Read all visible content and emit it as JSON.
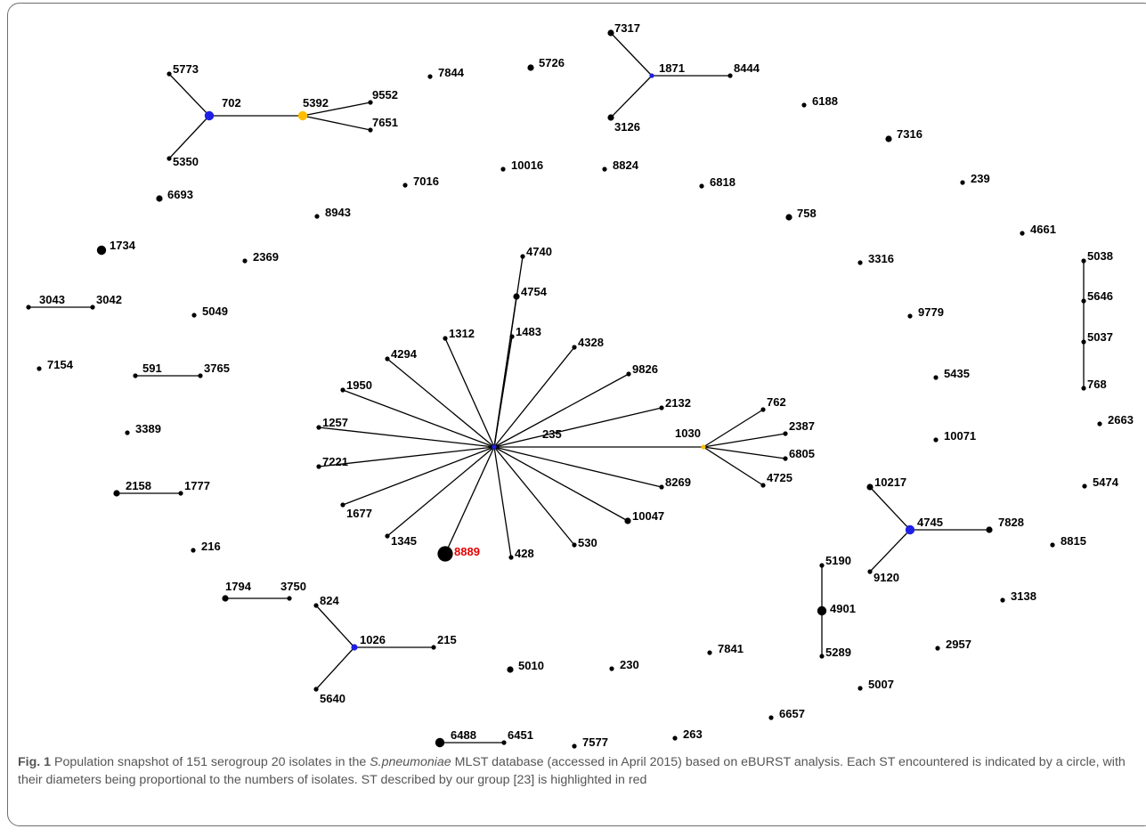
{
  "figure": {
    "caption": {
      "label": "Fig. 1",
      "text_before_species": "Population snapshot of 151 serogroup 20 isolates in the",
      "species": "S.pneumoniae",
      "text_after_species": "MLST database (accessed in April 2015) based on eBURST analysis. Each ST encountered is indicated by a circle, with their diameters being proportional to the numbers of isolates. ST described by our group [23] is highlighted in red"
    }
  },
  "colors": {
    "founder": "#1f1fe6",
    "subfounder": "#ffbf00",
    "default_node": "#000000",
    "highlight_label": "#e60000",
    "edge": "#000000"
  },
  "network": {
    "nodes": [
      {
        "id": "235",
        "label": "235",
        "type": "founder",
        "size": "small"
      },
      {
        "id": "4740",
        "label": "4740",
        "type": "default",
        "size": "small"
      },
      {
        "id": "4754",
        "label": "4754",
        "type": "default",
        "size": "medium"
      },
      {
        "id": "1483",
        "label": "1483",
        "type": "default",
        "size": "small"
      },
      {
        "id": "1312",
        "label": "1312",
        "type": "default",
        "size": "small"
      },
      {
        "id": "4294",
        "label": "4294",
        "type": "default",
        "size": "small"
      },
      {
        "id": "4328",
        "label": "4328",
        "type": "default",
        "size": "small"
      },
      {
        "id": "9826",
        "label": "9826",
        "type": "default",
        "size": "small"
      },
      {
        "id": "1950",
        "label": "1950",
        "type": "default",
        "size": "small"
      },
      {
        "id": "2132",
        "label": "2132",
        "type": "default",
        "size": "small"
      },
      {
        "id": "1257",
        "label": "1257",
        "type": "default",
        "size": "small"
      },
      {
        "id": "7221",
        "label": "7221",
        "type": "default",
        "size": "small"
      },
      {
        "id": "8269",
        "label": "8269",
        "type": "default",
        "size": "small"
      },
      {
        "id": "1677",
        "label": "1677",
        "type": "default",
        "size": "small"
      },
      {
        "id": "10047",
        "label": "10047",
        "type": "default",
        "size": "medium"
      },
      {
        "id": "1345",
        "label": "1345",
        "type": "default",
        "size": "small"
      },
      {
        "id": "8889",
        "label": "8889",
        "type": "highlight",
        "size": "xlarge"
      },
      {
        "id": "428",
        "label": "428",
        "type": "default",
        "size": "small"
      },
      {
        "id": "530",
        "label": "530",
        "type": "default",
        "size": "small"
      },
      {
        "id": "1030",
        "label": "1030",
        "type": "subfounder",
        "size": "small"
      },
      {
        "id": "762",
        "label": "762",
        "type": "default",
        "size": "small"
      },
      {
        "id": "2387",
        "label": "2387",
        "type": "default",
        "size": "small"
      },
      {
        "id": "6805",
        "label": "6805",
        "type": "default",
        "size": "small"
      },
      {
        "id": "4725",
        "label": "4725",
        "type": "default",
        "size": "small"
      },
      {
        "id": "702",
        "label": "702",
        "type": "founder",
        "size": "large"
      },
      {
        "id": "5773",
        "label": "5773",
        "type": "default",
        "size": "small"
      },
      {
        "id": "5350",
        "label": "5350",
        "type": "default",
        "size": "small"
      },
      {
        "id": "5392",
        "label": "5392",
        "type": "subfounder",
        "size": "large"
      },
      {
        "id": "9552",
        "label": "9552",
        "type": "default",
        "size": "small"
      },
      {
        "id": "7651",
        "label": "7651",
        "type": "default",
        "size": "small"
      },
      {
        "id": "1871",
        "label": "1871",
        "type": "founder",
        "size": "small"
      },
      {
        "id": "7317",
        "label": "7317",
        "type": "default",
        "size": "medium"
      },
      {
        "id": "3126",
        "label": "3126",
        "type": "default",
        "size": "medium"
      },
      {
        "id": "8444",
        "label": "8444",
        "type": "default",
        "size": "small"
      },
      {
        "id": "4745",
        "label": "4745",
        "type": "founder",
        "size": "large"
      },
      {
        "id": "10217",
        "label": "10217",
        "type": "default",
        "size": "medium"
      },
      {
        "id": "9120",
        "label": "9120",
        "type": "default",
        "size": "small"
      },
      {
        "id": "7828",
        "label": "7828",
        "type": "default",
        "size": "medium"
      },
      {
        "id": "1026",
        "label": "1026",
        "type": "founder",
        "size": "medium"
      },
      {
        "id": "824",
        "label": "824",
        "type": "default",
        "size": "small"
      },
      {
        "id": "5640",
        "label": "5640",
        "type": "default",
        "size": "small"
      },
      {
        "id": "215",
        "label": "215",
        "type": "default",
        "size": "small"
      },
      {
        "id": "5190",
        "label": "5190",
        "type": "default",
        "size": "small"
      },
      {
        "id": "4901",
        "label": "4901",
        "type": "default",
        "size": "large"
      },
      {
        "id": "5289",
        "label": "5289",
        "type": "default",
        "size": "small"
      },
      {
        "id": "5038",
        "label": "5038",
        "type": "default",
        "size": "small"
      },
      {
        "id": "5646",
        "label": "5646",
        "type": "default",
        "size": "small"
      },
      {
        "id": "5037",
        "label": "5037",
        "type": "default",
        "size": "small"
      },
      {
        "id": "768",
        "label": "768",
        "type": "default",
        "size": "small"
      },
      {
        "id": "3043",
        "label": "3043",
        "type": "default",
        "size": "small"
      },
      {
        "id": "3042",
        "label": "3042",
        "type": "default",
        "size": "small"
      },
      {
        "id": "591",
        "label": "591",
        "type": "default",
        "size": "small"
      },
      {
        "id": "3765",
        "label": "3765",
        "type": "default",
        "size": "small"
      },
      {
        "id": "2158",
        "label": "2158",
        "type": "default",
        "size": "medium"
      },
      {
        "id": "1777",
        "label": "1777",
        "type": "default",
        "size": "small"
      },
      {
        "id": "1794",
        "label": "1794",
        "type": "default",
        "size": "medium"
      },
      {
        "id": "3750",
        "label": "3750",
        "type": "default",
        "size": "small"
      },
      {
        "id": "6488",
        "label": "6488",
        "type": "default",
        "size": "large"
      },
      {
        "id": "6451",
        "label": "6451",
        "type": "default",
        "size": "small"
      },
      {
        "id": "7844",
        "label": "7844",
        "type": "default",
        "size": "small"
      },
      {
        "id": "5726",
        "label": "5726",
        "type": "default",
        "size": "medium"
      },
      {
        "id": "6188",
        "label": "6188",
        "type": "default",
        "size": "small"
      },
      {
        "id": "7316",
        "label": "7316",
        "type": "default",
        "size": "medium"
      },
      {
        "id": "6693",
        "label": "6693",
        "type": "default",
        "size": "medium"
      },
      {
        "id": "7016",
        "label": "7016",
        "type": "default",
        "size": "small"
      },
      {
        "id": "10016",
        "label": "10016",
        "type": "default",
        "size": "small"
      },
      {
        "id": "8824",
        "label": "8824",
        "type": "default",
        "size": "small"
      },
      {
        "id": "6818",
        "label": "6818",
        "type": "default",
        "size": "small"
      },
      {
        "id": "239",
        "label": "239",
        "type": "default",
        "size": "small"
      },
      {
        "id": "8943",
        "label": "8943",
        "type": "default",
        "size": "small"
      },
      {
        "id": "758",
        "label": "758",
        "type": "default",
        "size": "medium"
      },
      {
        "id": "1734",
        "label": "1734",
        "type": "default",
        "size": "large"
      },
      {
        "id": "4661",
        "label": "4661",
        "type": "default",
        "size": "small"
      },
      {
        "id": "2369",
        "label": "2369",
        "type": "default",
        "size": "small"
      },
      {
        "id": "3316",
        "label": "3316",
        "type": "default",
        "size": "small"
      },
      {
        "id": "5049",
        "label": "5049",
        "type": "default",
        "size": "small"
      },
      {
        "id": "9779",
        "label": "9779",
        "type": "default",
        "size": "small"
      },
      {
        "id": "7154",
        "label": "7154",
        "type": "default",
        "size": "small"
      },
      {
        "id": "5435",
        "label": "5435",
        "type": "default",
        "size": "small"
      },
      {
        "id": "3389",
        "label": "3389",
        "type": "default",
        "size": "small"
      },
      {
        "id": "2663",
        "label": "2663",
        "type": "default",
        "size": "small"
      },
      {
        "id": "10071",
        "label": "10071",
        "type": "default",
        "size": "small"
      },
      {
        "id": "5474",
        "label": "5474",
        "type": "default",
        "size": "small"
      },
      {
        "id": "216",
        "label": "216",
        "type": "default",
        "size": "small"
      },
      {
        "id": "8815",
        "label": "8815",
        "type": "default",
        "size": "small"
      },
      {
        "id": "3138",
        "label": "3138",
        "type": "default",
        "size": "small"
      },
      {
        "id": "2957",
        "label": "2957",
        "type": "default",
        "size": "small"
      },
      {
        "id": "5010",
        "label": "5010",
        "type": "default",
        "size": "medium"
      },
      {
        "id": "230",
        "label": "230",
        "type": "default",
        "size": "small"
      },
      {
        "id": "7841",
        "label": "7841",
        "type": "default",
        "size": "small"
      },
      {
        "id": "5007",
        "label": "5007",
        "type": "default",
        "size": "small"
      },
      {
        "id": "6657",
        "label": "6657",
        "type": "default",
        "size": "small"
      },
      {
        "id": "7577",
        "label": "7577",
        "type": "default",
        "size": "small"
      },
      {
        "id": "263",
        "label": "263",
        "type": "default",
        "size": "small"
      }
    ],
    "edges": [
      [
        "235",
        "4740"
      ],
      [
        "235",
        "4754"
      ],
      [
        "235",
        "1483"
      ],
      [
        "235",
        "1312"
      ],
      [
        "235",
        "4294"
      ],
      [
        "235",
        "4328"
      ],
      [
        "235",
        "9826"
      ],
      [
        "235",
        "1950"
      ],
      [
        "235",
        "2132"
      ],
      [
        "235",
        "1257"
      ],
      [
        "235",
        "7221"
      ],
      [
        "235",
        "8269"
      ],
      [
        "235",
        "1677"
      ],
      [
        "235",
        "10047"
      ],
      [
        "235",
        "1345"
      ],
      [
        "235",
        "8889"
      ],
      [
        "235",
        "428"
      ],
      [
        "235",
        "530"
      ],
      [
        "235",
        "1030"
      ],
      [
        "1030",
        "762"
      ],
      [
        "1030",
        "2387"
      ],
      [
        "1030",
        "6805"
      ],
      [
        "1030",
        "4725"
      ],
      [
        "702",
        "5773"
      ],
      [
        "702",
        "5350"
      ],
      [
        "702",
        "5392"
      ],
      [
        "5392",
        "9552"
      ],
      [
        "5392",
        "7651"
      ],
      [
        "1871",
        "7317"
      ],
      [
        "1871",
        "3126"
      ],
      [
        "1871",
        "8444"
      ],
      [
        "4745",
        "10217"
      ],
      [
        "4745",
        "9120"
      ],
      [
        "4745",
        "7828"
      ],
      [
        "1026",
        "824"
      ],
      [
        "1026",
        "5640"
      ],
      [
        "1026",
        "215"
      ],
      [
        "5190",
        "4901"
      ],
      [
        "4901",
        "5289"
      ],
      [
        "5038",
        "5646"
      ],
      [
        "5646",
        "5037"
      ],
      [
        "5037",
        "768"
      ],
      [
        "3043",
        "3042"
      ],
      [
        "591",
        "3765"
      ],
      [
        "2158",
        "1777"
      ],
      [
        "1794",
        "3750"
      ],
      [
        "6488",
        "6451"
      ]
    ]
  }
}
